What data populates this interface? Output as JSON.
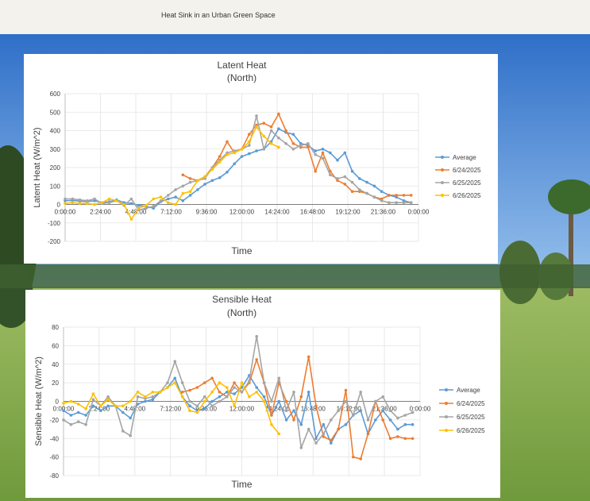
{
  "page": {
    "title": "Heat Sink in an Urban Green Space"
  },
  "colors": {
    "average": "#5b9bd5",
    "d0624": "#ed7d31",
    "d0625": "#a5a5a5",
    "d0626": "#ffc000"
  },
  "chart_data": [
    {
      "type": "line",
      "title": "Latent Heat",
      "subtitle": "(North)",
      "xlabel": "Time",
      "ylabel": "Latent Heat (W/m^2)",
      "ylim": [
        -200,
        600
      ],
      "yticks": [
        -200,
        -100,
        0,
        100,
        200,
        300,
        400,
        500,
        600
      ],
      "xlim": [
        0,
        24
      ],
      "xtick_labels": [
        "0:00:00",
        "2:24:00",
        "4:48:00",
        "7:12:00",
        "9:36:00",
        "12:00:00",
        "14:24:00",
        "16:48:00",
        "19:12:00",
        "21:36:00",
        "0:00:00"
      ],
      "grid": true,
      "legend": "right",
      "series": [
        {
          "name": "Average",
          "color": "#5b9bd5",
          "x": [
            0,
            0.5,
            1,
            1.5,
            2,
            2.5,
            3,
            3.5,
            4,
            4.5,
            5,
            5.5,
            6,
            6.5,
            7,
            7.5,
            8,
            8.5,
            9,
            9.5,
            10,
            10.5,
            11,
            11.5,
            12,
            12.5,
            13,
            13.5,
            14,
            14.5,
            15,
            15.5,
            16,
            16.5,
            17,
            17.5,
            18,
            18.5,
            19,
            19.5,
            20,
            20.5,
            21,
            21.5,
            22,
            22.5,
            23,
            23.5
          ],
          "y": [
            20,
            22,
            18,
            15,
            20,
            10,
            15,
            25,
            10,
            5,
            -5,
            -10,
            -20,
            15,
            30,
            40,
            20,
            50,
            80,
            110,
            130,
            145,
            175,
            220,
            260,
            275,
            290,
            300,
            340,
            410,
            390,
            380,
            330,
            320,
            290,
            300,
            280,
            240,
            280,
            180,
            140,
            120,
            100,
            70,
            50,
            40,
            20,
            10
          ]
        },
        {
          "name": "6/24/2025",
          "color": "#ed7d31",
          "x": [
            8,
            8.5,
            9,
            9.5,
            10,
            10.5,
            11,
            11.5,
            12,
            12.5,
            13,
            13.5,
            14,
            14.5,
            15,
            15.5,
            16,
            16.5,
            17,
            17.5,
            18,
            18.5,
            19,
            19.5,
            20,
            20.5,
            21,
            21.5,
            22,
            22.5,
            23,
            23.5
          ],
          "y": [
            160,
            140,
            130,
            150,
            200,
            260,
            340,
            280,
            300,
            380,
            430,
            440,
            420,
            490,
            400,
            330,
            310,
            310,
            180,
            280,
            180,
            130,
            110,
            70,
            70,
            60,
            40,
            30,
            50,
            50,
            50,
            50
          ]
        },
        {
          "name": "6/25/2025",
          "color": "#a5a5a5",
          "x": [
            0,
            0.5,
            1,
            1.5,
            2,
            2.5,
            3,
            3.5,
            4,
            4.5,
            5,
            5.5,
            6,
            6.5,
            7,
            7.5,
            8,
            8.5,
            9,
            9.5,
            10,
            10.5,
            11,
            11.5,
            12,
            12.5,
            13,
            13.5,
            14,
            14.5,
            15,
            15.5,
            16,
            16.5,
            17,
            17.5,
            18,
            18.5,
            19,
            19.5,
            20,
            20.5,
            21,
            21.5,
            22,
            22.5,
            23,
            23.5
          ],
          "y": [
            30,
            30,
            25,
            20,
            30,
            5,
            10,
            20,
            -5,
            30,
            -30,
            -20,
            -10,
            20,
            50,
            80,
            100,
            120,
            130,
            140,
            200,
            240,
            280,
            290,
            300,
            320,
            480,
            300,
            400,
            360,
            330,
            300,
            320,
            330,
            270,
            250,
            160,
            140,
            150,
            120,
            80,
            60,
            40,
            20,
            10,
            10,
            10,
            10
          ]
        },
        {
          "name": "6/26/2025",
          "color": "#ffc000",
          "x": [
            0,
            0.5,
            1,
            1.5,
            2,
            2.5,
            3,
            3.5,
            4,
            4.5,
            5,
            5.5,
            6,
            6.5,
            7,
            7.5,
            8,
            8.5,
            9,
            9.5,
            10,
            10.5,
            11,
            11.5,
            12,
            12.5,
            13,
            13.5,
            14,
            14.5
          ],
          "y": [
            5,
            10,
            5,
            5,
            0,
            10,
            30,
            20,
            0,
            -80,
            -20,
            -5,
            30,
            40,
            10,
            0,
            60,
            70,
            130,
            150,
            190,
            230,
            270,
            280,
            300,
            340,
            420,
            370,
            330,
            310
          ]
        }
      ]
    },
    {
      "type": "line",
      "title": "Sensible Heat",
      "subtitle": "(North)",
      "xlabel": "Time",
      "ylabel": "Sensible Heat (W/m^2)",
      "ylim": [
        -80,
        80
      ],
      "yticks": [
        -80,
        -60,
        -40,
        -20,
        0,
        20,
        40,
        60,
        80
      ],
      "xlim": [
        0,
        24
      ],
      "xtick_labels": [
        "0:00:00",
        "2:24:00",
        "4:48:00",
        "7:12:00",
        "9:36:00",
        "12:00:00",
        "14:24:00",
        "16:48:00",
        "19:12:00",
        "21:36:00",
        "0:00:00"
      ],
      "grid": true,
      "legend": "right",
      "series": [
        {
          "name": "Average",
          "color": "#5b9bd5",
          "x": [
            0,
            0.5,
            1,
            1.5,
            2,
            2.5,
            3,
            3.5,
            4,
            4.5,
            5,
            5.5,
            6,
            6.5,
            7,
            7.5,
            8,
            8.5,
            9,
            9.5,
            10,
            10.5,
            11,
            11.5,
            12,
            12.5,
            13,
            13.5,
            14,
            14.5,
            15,
            15.5,
            16,
            16.5,
            17,
            17.5,
            18,
            18.5,
            19,
            19.5,
            20,
            20.5,
            21,
            21.5,
            22,
            22.5,
            23,
            23.5
          ],
          "y": [
            -10,
            -15,
            -12,
            -15,
            -5,
            -10,
            -5,
            -5,
            -12,
            -18,
            -3,
            0,
            2,
            10,
            15,
            25,
            5,
            -5,
            -10,
            -8,
            0,
            5,
            10,
            8,
            15,
            28,
            15,
            5,
            -15,
            0,
            -20,
            -10,
            -25,
            10,
            -40,
            -25,
            -45,
            -30,
            -25,
            -15,
            -10,
            -35,
            -20,
            -10,
            -20,
            -30,
            -25,
            -25
          ]
        },
        {
          "name": "6/24/2025",
          "color": "#ed7d31",
          "x": [
            8,
            8.5,
            9,
            9.5,
            10,
            10.5,
            11,
            11.5,
            12,
            12.5,
            13,
            13.5,
            14,
            14.5,
            15,
            15.5,
            16,
            16.5,
            17,
            17.5,
            18,
            18.5,
            19,
            19.5,
            20,
            20.5,
            21,
            21.5,
            22,
            22.5,
            23,
            23.5
          ],
          "y": [
            10,
            12,
            15,
            20,
            25,
            10,
            5,
            20,
            10,
            20,
            45,
            20,
            -15,
            20,
            0,
            -20,
            5,
            48,
            -5,
            -38,
            -42,
            -30,
            12,
            -60,
            -62,
            -35,
            0,
            -20,
            -40,
            -38,
            -40,
            -40
          ]
        },
        {
          "name": "6/25/2025",
          "color": "#a5a5a5",
          "x": [
            0,
            0.5,
            1,
            1.5,
            2,
            2.5,
            3,
            3.5,
            4,
            4.5,
            5,
            5.5,
            6,
            6.5,
            7,
            7.5,
            8,
            8.5,
            9,
            9.5,
            10,
            10.5,
            11,
            11.5,
            12,
            12.5,
            13,
            13.5,
            14,
            14.5,
            15,
            15.5,
            16,
            16.5,
            17,
            17.5,
            18,
            18.5,
            19,
            19.5,
            20,
            20.5,
            21,
            21.5,
            22,
            22.5,
            23,
            23.5
          ],
          "y": [
            -20,
            -25,
            -22,
            -25,
            2,
            -5,
            5,
            -5,
            -32,
            -37,
            5,
            3,
            5,
            10,
            20,
            43,
            20,
            0,
            -5,
            5,
            -5,
            0,
            5,
            15,
            10,
            22,
            70,
            20,
            0,
            25,
            -10,
            10,
            -50,
            -30,
            -45,
            -35,
            -20,
            -10,
            0,
            -15,
            10,
            -20,
            0,
            5,
            -10,
            -18,
            -15,
            -12
          ]
        },
        {
          "name": "6/26/2025",
          "color": "#ffc000",
          "x": [
            0,
            0.5,
            1,
            1.5,
            2,
            2.5,
            3,
            3.5,
            4,
            4.5,
            5,
            5.5,
            6,
            6.5,
            7,
            7.5,
            8,
            8.5,
            9,
            9.5,
            10,
            10.5,
            11,
            11.5,
            12,
            12.5,
            13,
            13.5,
            14,
            14.5
          ],
          "y": [
            -2,
            0,
            -3,
            -8,
            8,
            -5,
            2,
            -5,
            -5,
            0,
            10,
            5,
            10,
            10,
            15,
            20,
            5,
            -10,
            -12,
            0,
            10,
            20,
            15,
            -5,
            20,
            5,
            10,
            0,
            -25,
            -35
          ]
        }
      ]
    }
  ]
}
